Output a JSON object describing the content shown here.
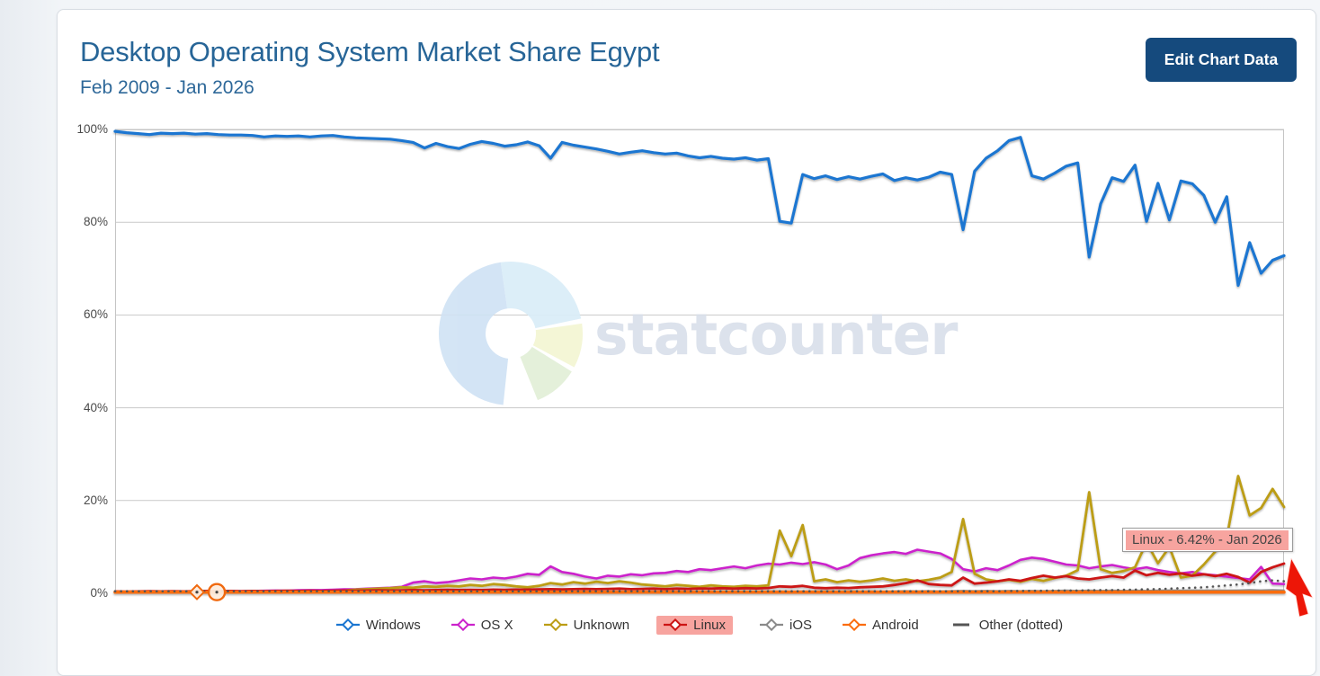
{
  "header": {
    "title": "Desktop Operating System Market Share Egypt",
    "subtitle": "Feb 2009 - Jan 2026",
    "button_label": "Edit Chart Data"
  },
  "watermark": {
    "text": "statcounter"
  },
  "tooltip": {
    "text": "Linux - 6.42% - Jan 2026"
  },
  "axis": {
    "y_ticks": [
      "100%",
      "80%",
      "60%",
      "40%",
      "20%",
      "0%"
    ]
  },
  "legend": {
    "highlight_color": "#f7a49f",
    "items": [
      {
        "label": "Windows",
        "color": "#1b76d1",
        "marker": "diamond",
        "highlighted": false
      },
      {
        "label": "OS X",
        "color": "#cc22cc",
        "marker": "diamond",
        "highlighted": false
      },
      {
        "label": "Unknown",
        "color": "#bc9d15",
        "marker": "diamond",
        "highlighted": false
      },
      {
        "label": "Linux",
        "color": "#cc1414",
        "marker": "diamond",
        "highlighted": true
      },
      {
        "label": "iOS",
        "color": "#8a8a8a",
        "marker": "diamond",
        "highlighted": false
      },
      {
        "label": "Android",
        "color": "#fb6d0e",
        "marker": "diamond",
        "highlighted": false
      },
      {
        "label": "Other (dotted)",
        "color": "#555555",
        "marker": "dash",
        "highlighted": false
      }
    ]
  },
  "chart_data": {
    "type": "line",
    "title": "Desktop Operating System Market Share Egypt",
    "subtitle": "Feb 2009 - Jan 2026",
    "x_start": "Feb 2009",
    "x_end": "Jan 2026",
    "x_step_months": 2,
    "note": "values are percent market share estimated from the chart, sampled every 2 months from Feb 2009, last point Jan 2026",
    "ylim": [
      0,
      100
    ],
    "y_ticks_percent": [
      0,
      20,
      40,
      60,
      80,
      100
    ],
    "grid": "horizontal",
    "legend_position": "bottom",
    "highlighted_series": "Linux",
    "tooltip_point": {
      "series": "Linux",
      "x": "Jan 2026",
      "value": 6.42
    },
    "series": [
      {
        "name": "Windows",
        "color": "#1b76d1",
        "style": "solid",
        "width": 3.2,
        "values": [
          99.6,
          99.3,
          99.1,
          98.9,
          99.2,
          99.1,
          99.2,
          99.0,
          99.1,
          98.9,
          98.8,
          98.8,
          98.7,
          98.4,
          98.6,
          98.5,
          98.6,
          98.4,
          98.6,
          98.7,
          98.4,
          98.2,
          98.1,
          98.0,
          97.9,
          97.6,
          97.2,
          96.0,
          97.0,
          96.3,
          95.9,
          96.8,
          97.4,
          97.0,
          96.4,
          96.7,
          97.3,
          96.5,
          93.8,
          97.2,
          96.6,
          96.2,
          95.8,
          95.3,
          94.7,
          95.1,
          95.4,
          95.0,
          94.7,
          94.9,
          94.3,
          93.9,
          94.2,
          93.8,
          93.6,
          93.9,
          93.4,
          93.7,
          80.2,
          79.8,
          90.3,
          89.4,
          90.0,
          89.2,
          89.8,
          89.3,
          89.9,
          90.4,
          89.0,
          89.6,
          89.1,
          89.7,
          90.8,
          90.3,
          78.4,
          91.0,
          93.8,
          95.4,
          97.6,
          98.3,
          90.0,
          89.3,
          90.6,
          92.1,
          92.8,
          72.5,
          84.0,
          89.6,
          88.8,
          92.3,
          80.2,
          88.4,
          80.5,
          88.9,
          88.3,
          85.8,
          80.0,
          85.5,
          66.4,
          75.6,
          69.0,
          71.8,
          72.8
        ]
      },
      {
        "name": "OS X",
        "color": "#cc22cc",
        "style": "solid",
        "width": 2.6,
        "values": [
          0.3,
          0.3,
          0.35,
          0.3,
          0.4,
          0.35,
          0.4,
          0.4,
          0.45,
          0.4,
          0.5,
          0.45,
          0.5,
          0.55,
          0.6,
          0.55,
          0.65,
          0.7,
          0.7,
          0.75,
          0.85,
          0.9,
          1.0,
          1.1,
          1.2,
          1.4,
          2.3,
          2.6,
          2.2,
          2.4,
          2.8,
          3.2,
          3.0,
          3.4,
          3.2,
          3.6,
          4.2,
          4.0,
          5.8,
          4.6,
          4.2,
          3.6,
          3.2,
          3.8,
          3.6,
          4.1,
          3.9,
          4.3,
          4.4,
          4.8,
          4.6,
          5.2,
          5.0,
          5.4,
          5.8,
          5.4,
          6.0,
          6.4,
          6.2,
          6.6,
          6.3,
          6.7,
          6.2,
          5.2,
          6.0,
          7.6,
          8.2,
          8.6,
          8.9,
          8.5,
          9.4,
          9.0,
          8.6,
          7.4,
          5.2,
          4.7,
          5.4,
          5.0,
          6.0,
          7.2,
          7.7,
          7.4,
          6.8,
          6.2,
          6.0,
          5.4,
          5.8,
          6.1,
          5.6,
          5.2,
          5.6,
          5.0,
          4.6,
          4.3,
          4.6,
          4.1,
          3.9,
          3.6,
          3.3,
          3.0,
          5.7,
          2.1,
          2.0
        ]
      },
      {
        "name": "Unknown",
        "color": "#bc9d15",
        "style": "solid",
        "width": 2.8,
        "values": [
          0.2,
          0.2,
          0.25,
          0.2,
          0.25,
          0.2,
          0.25,
          0.2,
          0.25,
          0.3,
          0.25,
          0.3,
          0.3,
          0.35,
          0.3,
          0.35,
          0.4,
          0.35,
          0.4,
          0.5,
          0.6,
          0.8,
          0.9,
          1.0,
          1.1,
          1.3,
          1.2,
          1.5,
          1.4,
          1.6,
          1.5,
          1.8,
          1.6,
          2.0,
          1.8,
          1.5,
          1.3,
          1.6,
          2.2,
          1.9,
          2.4,
          2.1,
          2.5,
          2.2,
          2.6,
          2.3,
          1.9,
          1.7,
          1.5,
          1.8,
          1.6,
          1.4,
          1.7,
          1.5,
          1.4,
          1.6,
          1.5,
          1.7,
          13.5,
          8.0,
          14.7,
          2.6,
          3.0,
          2.4,
          2.8,
          2.5,
          2.8,
          3.2,
          2.7,
          3.0,
          2.6,
          2.9,
          3.4,
          4.6,
          16.0,
          4.2,
          3.0,
          2.6,
          2.9,
          2.5,
          3.1,
          2.7,
          3.3,
          3.8,
          5.0,
          21.8,
          5.2,
          4.4,
          4.8,
          5.6,
          11.0,
          6.5,
          10.0,
          3.4,
          3.8,
          6.2,
          9.0,
          12.0,
          25.3,
          16.8,
          18.4,
          22.5,
          18.6
        ]
      },
      {
        "name": "Linux",
        "color": "#cc1414",
        "style": "solid",
        "width": 2.8,
        "values": [
          0.4,
          0.35,
          0.4,
          0.45,
          0.4,
          0.45,
          0.4,
          0.45,
          0.5,
          0.45,
          0.5,
          0.45,
          0.5,
          0.45,
          0.5,
          0.55,
          0.5,
          0.55,
          0.5,
          0.55,
          0.6,
          0.55,
          0.6,
          0.65,
          0.6,
          0.65,
          0.7,
          0.65,
          0.7,
          0.75,
          0.7,
          0.75,
          0.7,
          0.8,
          0.75,
          0.8,
          0.8,
          0.85,
          0.9,
          0.85,
          0.9,
          0.95,
          0.9,
          0.95,
          1.0,
          0.9,
          0.95,
          1.0,
          0.9,
          1.0,
          0.95,
          1.05,
          1.0,
          1.1,
          1.0,
          1.1,
          1.05,
          1.15,
          1.5,
          1.4,
          1.6,
          1.2,
          1.1,
          1.2,
          1.15,
          1.3,
          1.4,
          1.5,
          1.8,
          2.2,
          2.8,
          2.0,
          1.8,
          1.7,
          3.4,
          2.1,
          2.3,
          2.6,
          3.0,
          2.7,
          3.3,
          3.8,
          3.4,
          3.7,
          3.2,
          3.0,
          3.4,
          3.7,
          3.4,
          4.9,
          3.9,
          4.4,
          4.0,
          4.3,
          3.8,
          4.1,
          3.7,
          4.2,
          3.5,
          2.3,
          4.6,
          5.6,
          6.42
        ]
      },
      {
        "name": "iOS",
        "color": "#8a8a8a",
        "style": "solid",
        "width": 1.6,
        "values": [
          0.15,
          0.2,
          0.15,
          0.2,
          0.15,
          0.2,
          0.15,
          0.2,
          0.15,
          0.2,
          0.15,
          0.2,
          0.2,
          0.15,
          0.2,
          0.15,
          0.2,
          0.15,
          0.2,
          0.15,
          0.2,
          0.25,
          0.2,
          0.25,
          0.2,
          0.25,
          0.2,
          0.25,
          0.3,
          0.25,
          0.3,
          0.25,
          0.3,
          0.25,
          0.3,
          0.35,
          0.3,
          0.35,
          0.3,
          0.35,
          0.3,
          0.35,
          0.3,
          0.35,
          0.4,
          0.35,
          0.4,
          0.35,
          0.4,
          0.35,
          0.4,
          0.45,
          0.4,
          0.45,
          0.4,
          0.45,
          0.4,
          0.45,
          0.5,
          0.45,
          0.5,
          0.45,
          0.5,
          0.45,
          0.5,
          0.45,
          0.5,
          0.45,
          0.5,
          0.55,
          0.5,
          0.55,
          0.5,
          0.55,
          0.6,
          0.55,
          0.6,
          0.55,
          0.6,
          0.55,
          0.6,
          0.55,
          0.6,
          0.65,
          0.6,
          0.65,
          0.6,
          0.65,
          0.6,
          0.65,
          0.6,
          0.65,
          0.7,
          0.65,
          0.7,
          0.65,
          0.7,
          0.65,
          0.7,
          0.75,
          0.7,
          0.75,
          0.7
        ]
      },
      {
        "name": "Android",
        "color": "#fb6d0e",
        "style": "solid",
        "width": 3.6,
        "values": [
          0.25,
          0.25,
          0.25,
          0.25,
          0.25,
          0.25,
          0.25,
          0.25,
          0.25,
          0.25,
          0.25,
          0.25,
          0.25,
          0.25,
          0.25,
          0.25,
          0.25,
          0.25,
          0.25,
          0.25,
          0.25,
          0.25,
          0.25,
          0.25,
          0.25,
          0.25,
          0.25,
          0.25,
          0.25,
          0.25,
          0.25,
          0.25,
          0.25,
          0.25,
          0.25,
          0.25,
          0.25,
          0.25,
          0.25,
          0.25,
          0.25,
          0.25,
          0.25,
          0.25,
          0.25,
          0.25,
          0.25,
          0.25,
          0.25,
          0.25,
          0.25,
          0.25,
          0.25,
          0.25,
          0.25,
          0.25,
          0.25,
          0.25,
          0.25,
          0.25,
          0.25,
          0.25,
          0.25,
          0.25,
          0.25,
          0.25,
          0.25,
          0.25,
          0.25,
          0.25,
          0.25,
          0.25,
          0.25,
          0.25,
          0.25,
          0.25,
          0.25,
          0.25,
          0.25,
          0.25,
          0.25,
          0.25,
          0.25,
          0.25,
          0.25,
          0.25,
          0.25,
          0.25,
          0.25,
          0.25,
          0.25,
          0.25,
          0.25,
          0.25,
          0.25,
          0.25,
          0.25,
          0.25,
          0.25,
          0.25,
          0.25,
          0.25,
          0.25
        ]
      },
      {
        "name": "Other (dotted)",
        "color": "#555555",
        "style": "dotted",
        "width": 2.6,
        "values": [
          0.45,
          0.45,
          0.45,
          0.45,
          0.45,
          0.45,
          0.45,
          0.45,
          0.45,
          0.45,
          0.45,
          0.45,
          0.45,
          0.45,
          0.45,
          0.45,
          0.45,
          0.45,
          0.45,
          0.45,
          0.45,
          0.45,
          0.45,
          0.45,
          0.45,
          0.45,
          0.45,
          0.45,
          0.45,
          0.45,
          0.45,
          0.45,
          0.45,
          0.45,
          0.45,
          0.45,
          0.45,
          0.45,
          0.45,
          0.45,
          0.45,
          0.45,
          0.45,
          0.45,
          0.45,
          0.45,
          0.45,
          0.45,
          0.45,
          0.45,
          0.45,
          0.45,
          0.45,
          0.45,
          0.45,
          0.45,
          0.45,
          0.45,
          0.45,
          0.45,
          0.45,
          0.45,
          0.45,
          0.45,
          0.45,
          0.45,
          0.45,
          0.45,
          0.45,
          0.45,
          0.45,
          0.45,
          0.45,
          0.45,
          0.45,
          0.45,
          0.45,
          0.45,
          0.5,
          0.5,
          0.55,
          0.55,
          0.6,
          0.6,
          0.6,
          0.65,
          0.7,
          0.7,
          0.75,
          0.8,
          0.85,
          0.9,
          1.0,
          1.1,
          1.2,
          1.3,
          1.5,
          1.7,
          1.9,
          2.2,
          2.6,
          2.8,
          2.6
        ]
      }
    ],
    "highlight_markers": [
      {
        "series": "Android",
        "x_frac": 0.07,
        "shape": "diamond"
      },
      {
        "series": "Android",
        "x_frac": 0.087,
        "shape": "circle"
      }
    ]
  }
}
